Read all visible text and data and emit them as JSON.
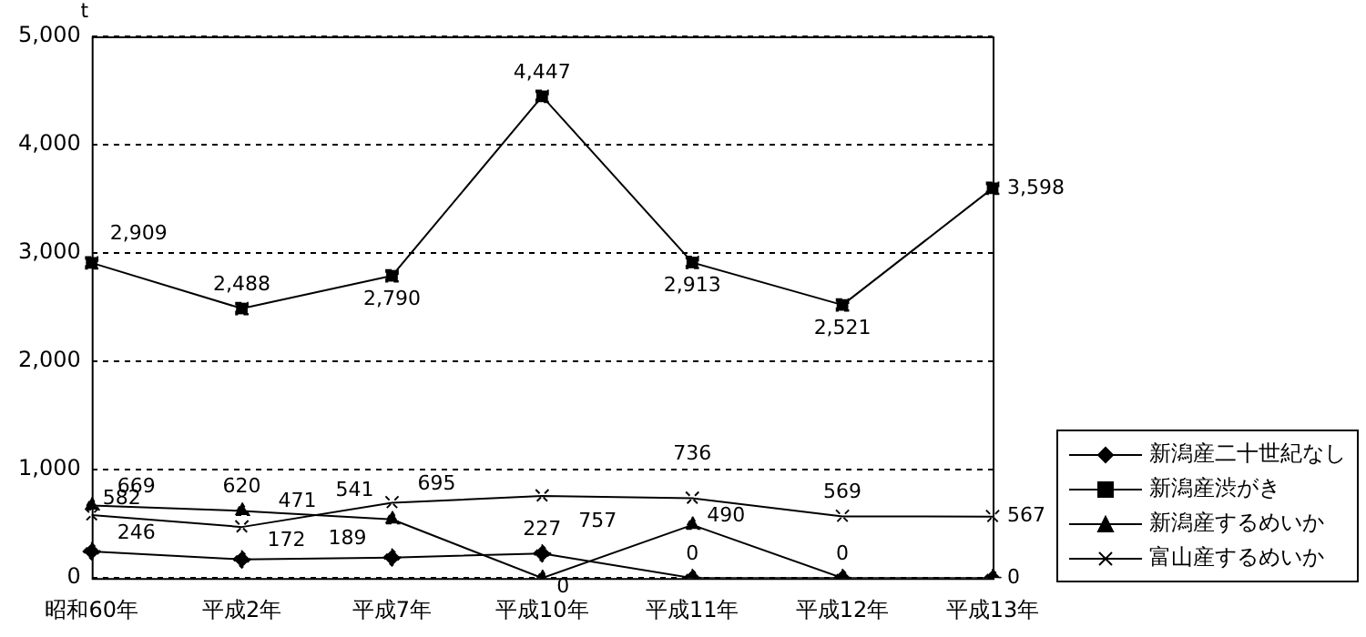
{
  "chart_data": {
    "type": "line",
    "ylabel": "t",
    "categories": [
      "昭和60年",
      "平成2年",
      "平成7年",
      "平成10年",
      "平成11年",
      "平成12年",
      "平成13年"
    ],
    "ylim": [
      0,
      5000
    ],
    "yticks": [
      {
        "value": 0,
        "label": "0"
      },
      {
        "value": 1000,
        "label": "1,000"
      },
      {
        "value": 2000,
        "label": "2,000"
      },
      {
        "value": 3000,
        "label": "3,000"
      },
      {
        "value": 4000,
        "label": "4,000"
      },
      {
        "value": 5000,
        "label": "5,000"
      }
    ],
    "grid": "y",
    "legend": "right",
    "line_style": "solid",
    "series": [
      {
        "name": "新潟産二十世紀なし",
        "color": "#000000",
        "marker": "diamond",
        "values": [
          246,
          172,
          189,
          227,
          0,
          0,
          0
        ],
        "value_labels": [
          "246",
          "172",
          "189",
          "227",
          "0",
          "0",
          "0"
        ]
      },
      {
        "name": "新潟産渋がき",
        "color": "#000000",
        "marker": "square",
        "values": [
          2909,
          2488,
          2790,
          4447,
          2913,
          2521,
          3598
        ],
        "value_labels": [
          "2,909",
          "2,488",
          "2,790",
          "4,447",
          "2,913",
          "2,521",
          "3,598"
        ]
      },
      {
        "name": "新潟産するめいか",
        "color": "#000000",
        "marker": "triangle",
        "values": [
          669,
          620,
          541,
          0,
          490,
          0,
          null
        ],
        "value_labels": [
          "669",
          "620",
          "541",
          "0",
          "490",
          null,
          null
        ]
      },
      {
        "name": "富山産するめいか",
        "color": "#000000",
        "marker": "cross",
        "values": [
          582,
          471,
          695,
          757,
          736,
          569,
          567
        ],
        "value_labels": [
          "582",
          "471",
          "695",
          "757",
          "736",
          "569",
          "567"
        ]
      }
    ]
  }
}
